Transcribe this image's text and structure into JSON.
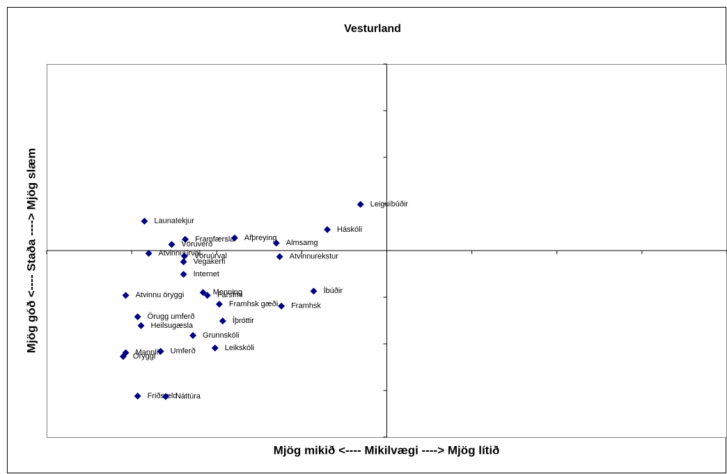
{
  "chart_data": {
    "type": "scatter",
    "title": "Vesturland",
    "xlabel": "Mjög mikið <---- Mikilvægi ----> Mjög lítið",
    "ylabel": "Mjög góð <---- Staða ----> Mjög slæm",
    "color": "#000080",
    "xlim": [
      -4,
      4
    ],
    "ylim": [
      -4,
      4
    ],
    "xticks": [
      -4,
      -3,
      -2,
      -1,
      0,
      1,
      2,
      3,
      4
    ],
    "yticks": [
      -4,
      -3,
      -2,
      -1,
      0,
      1,
      2,
      3,
      4
    ],
    "labels": [
      "Leiguíbúðir",
      "Háskóli",
      "Launatekjur",
      "Framfærsla",
      "Afþreying",
      "Vöruverð",
      "Almsamg",
      "Atvinnuúrval",
      "Vöruúrval",
      "Vegakerfi",
      "Atvinnurekstur",
      "Internet",
      "Atvinnu öryggi",
      "Menning",
      "Farsími",
      "Íbúðir",
      "Framhsk gæði",
      "Framhsk",
      "Örugg umferð",
      "Heilsugæsla",
      "Íþróttir",
      "Grunnskóli",
      "Leikskóli",
      "Mannlíf",
      "Umferð",
      "Öryggi",
      "Friðsæld",
      "Náttúra"
    ],
    "x": [
      -0.31,
      -0.7,
      -2.85,
      -2.37,
      -1.79,
      -2.53,
      -1.3,
      -2.8,
      -2.38,
      -2.39,
      -1.26,
      -2.39,
      -3.07,
      -2.16,
      -2.11,
      -0.86,
      -1.97,
      -1.24,
      -2.93,
      -2.89,
      -1.93,
      -2.28,
      -2.02,
      -3.07,
      -2.66,
      -3.1,
      -2.93,
      -2.6
    ],
    "y": [
      0.99,
      0.45,
      0.63,
      0.24,
      0.27,
      0.13,
      0.16,
      -0.06,
      -0.12,
      -0.24,
      -0.13,
      -0.51,
      -0.96,
      -0.9,
      -0.96,
      -0.87,
      -1.15,
      -1.19,
      -1.42,
      -1.61,
      -1.51,
      -1.82,
      -2.09,
      -2.19,
      -2.16,
      -2.27,
      -3.12,
      -3.13
    ]
  }
}
